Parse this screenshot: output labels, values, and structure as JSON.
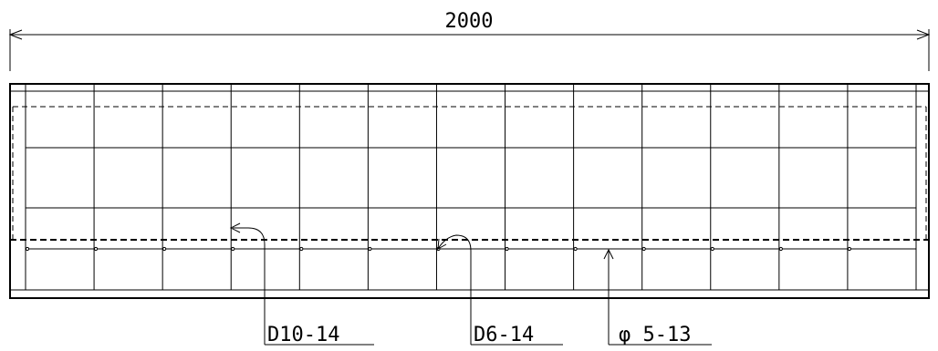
{
  "drawing": {
    "overall_dimension": "2000",
    "grid_columns": 13,
    "callouts": [
      {
        "id": "d10",
        "label": "D10-14"
      },
      {
        "id": "d6",
        "label": "D6-14"
      },
      {
        "id": "phi5",
        "label": "φ 5-13"
      }
    ],
    "line_color": "#000000",
    "background_color": "#ffffff"
  }
}
